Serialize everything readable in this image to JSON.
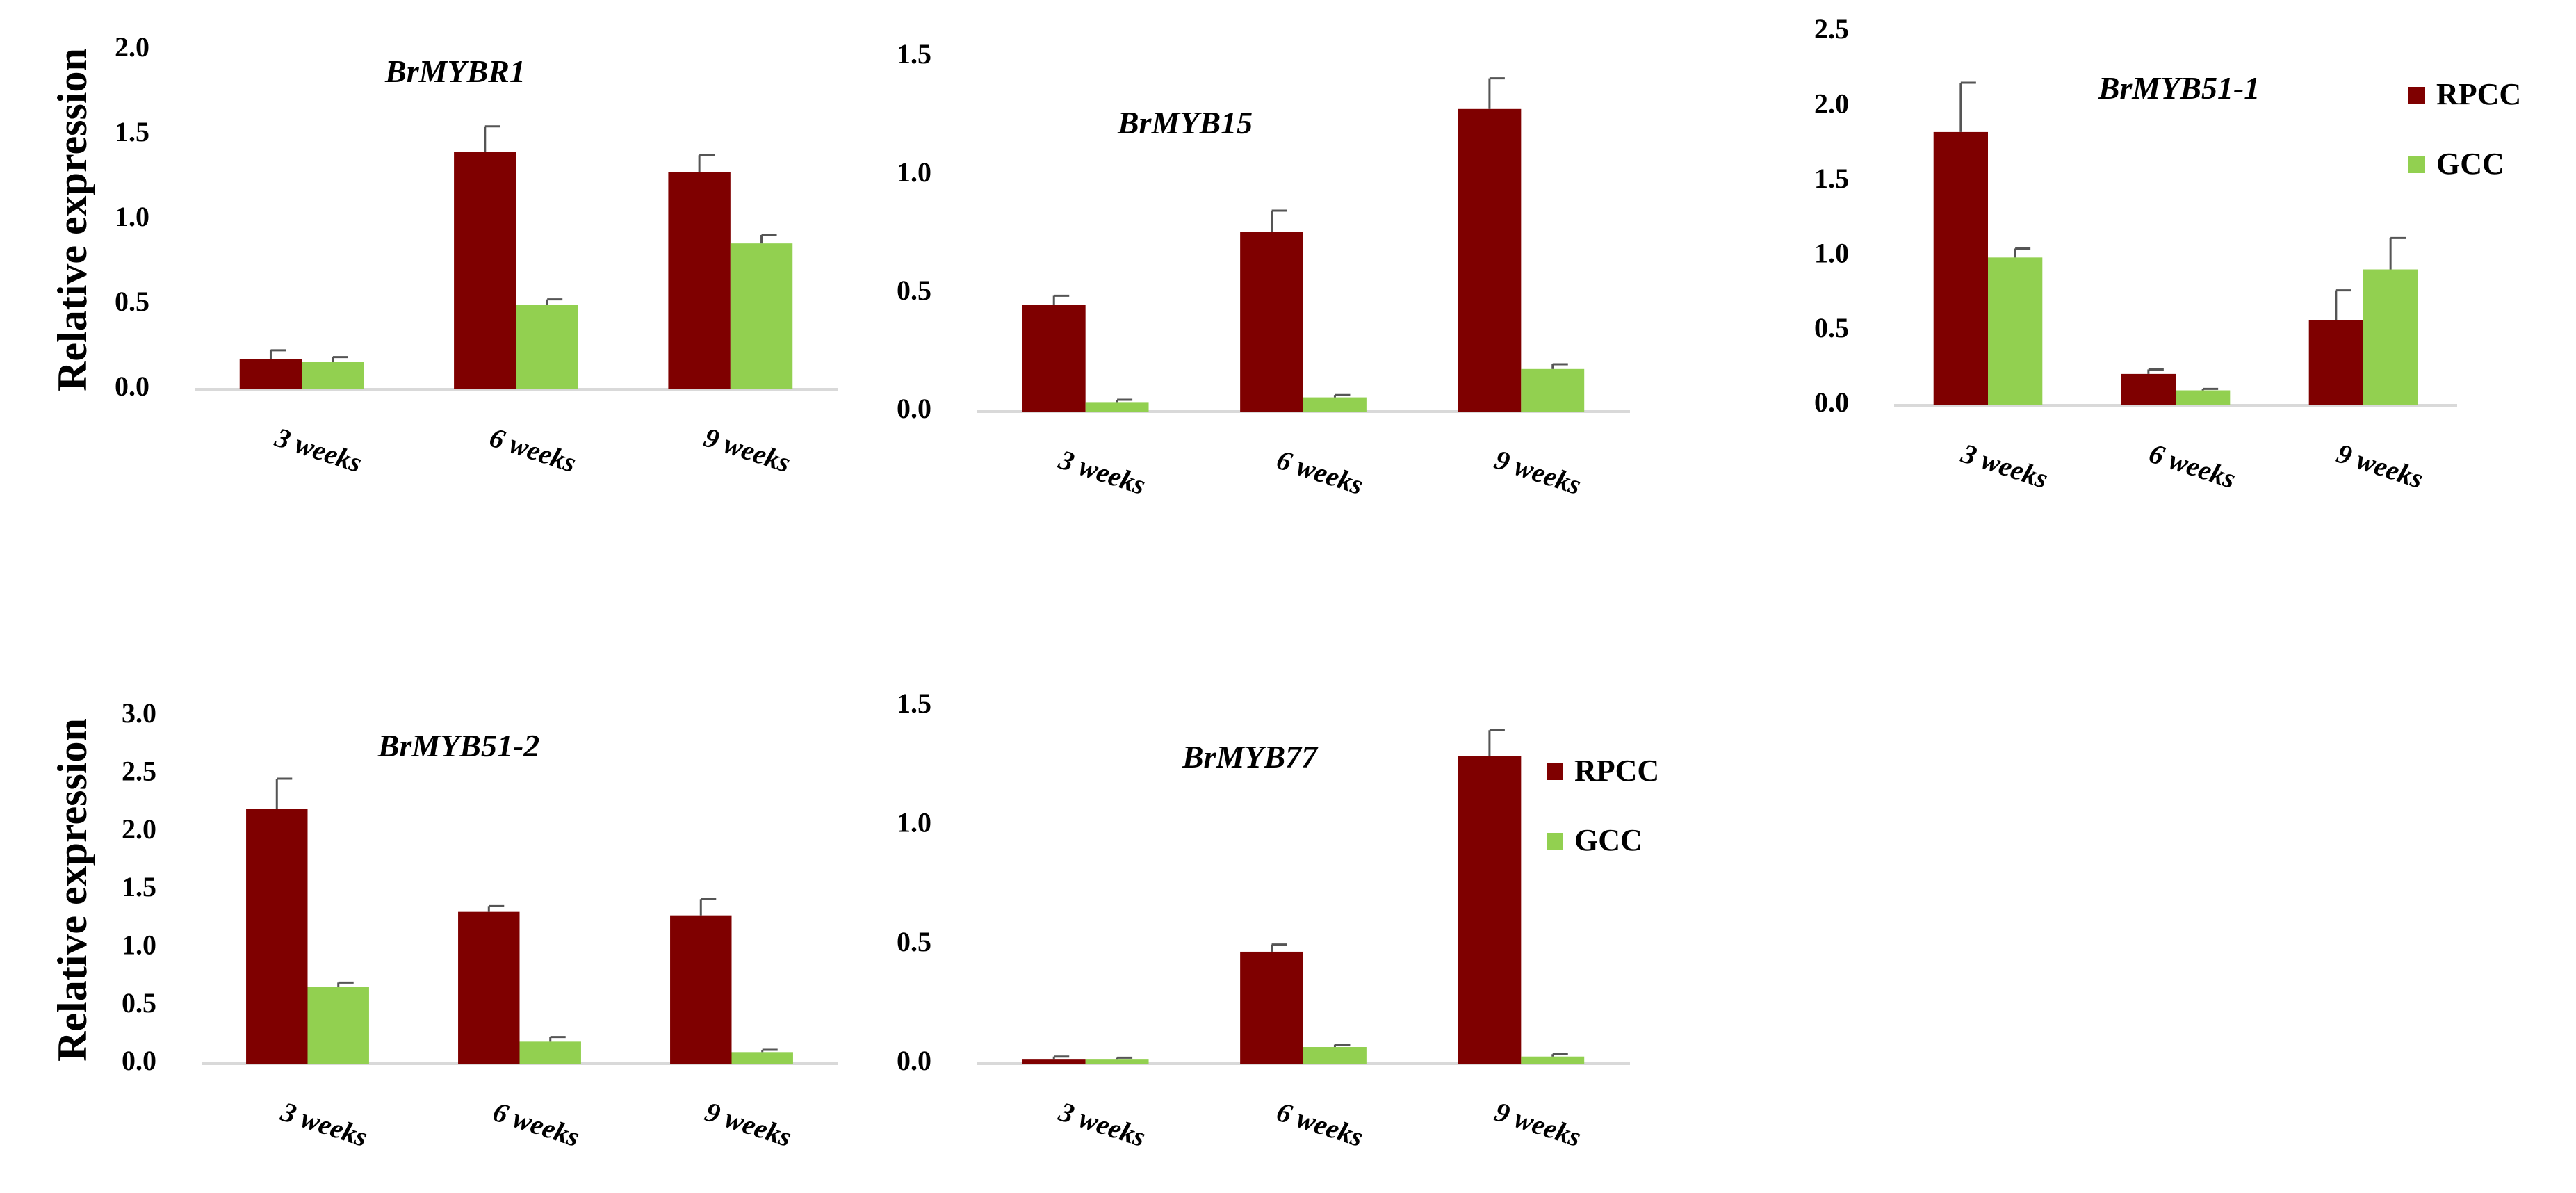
{
  "colors": {
    "RPCC": "#7f0000",
    "GCC": "#92d050",
    "axis": "#d9d9d9",
    "error": "#555555"
  },
  "chart_data": [
    {
      "type": "bar",
      "title": "BrMYBR1",
      "ylabel": "Relative expression",
      "categories": [
        "3 weeks",
        "6 weeks",
        "9 weeks"
      ],
      "ylim": [
        0,
        2.0
      ],
      "yticks": [
        "0.0",
        "0.5",
        "1.0",
        "1.5",
        "2.0"
      ],
      "legend": "none",
      "series": [
        {
          "name": "RPCC",
          "values": [
            0.18,
            1.4,
            1.28
          ],
          "errors": [
            0.05,
            0.15,
            0.1
          ]
        },
        {
          "name": "GCC",
          "values": [
            0.16,
            0.5,
            0.86
          ],
          "errors": [
            0.03,
            0.03,
            0.05
          ]
        }
      ]
    },
    {
      "type": "bar",
      "title": "BrMYB15",
      "ylabel": "",
      "categories": [
        "3 weeks",
        "6 weeks",
        "9 weeks"
      ],
      "ylim": [
        0,
        1.5
      ],
      "yticks": [
        "0.0",
        "0.5",
        "1.0",
        "1.5"
      ],
      "legend": "none",
      "series": [
        {
          "name": "RPCC",
          "values": [
            0.45,
            0.76,
            1.28
          ],
          "errors": [
            0.04,
            0.09,
            0.13
          ]
        },
        {
          "name": "GCC",
          "values": [
            0.04,
            0.06,
            0.18
          ],
          "errors": [
            0.01,
            0.01,
            0.02
          ]
        }
      ]
    },
    {
      "type": "bar",
      "title": "BrMYB51-1",
      "ylabel": "",
      "categories": [
        "3 weeks",
        "6 weeks",
        "9 weeks"
      ],
      "ylim": [
        0,
        2.5
      ],
      "yticks": [
        "0.0",
        "0.5",
        "1.0",
        "1.5",
        "2.0",
        "2.5"
      ],
      "legend": "top-right",
      "series": [
        {
          "name": "RPCC",
          "values": [
            1.83,
            0.21,
            0.57
          ],
          "errors": [
            0.33,
            0.03,
            0.2
          ]
        },
        {
          "name": "GCC",
          "values": [
            0.99,
            0.1,
            0.91
          ],
          "errors": [
            0.06,
            0.01,
            0.21
          ]
        }
      ]
    },
    {
      "type": "bar",
      "title": "BrMYB51-2",
      "ylabel": "Relative expression",
      "categories": [
        "3 weeks",
        "6 weeks",
        "9 weeks"
      ],
      "ylim": [
        0,
        3.0
      ],
      "yticks": [
        "0.0",
        "0.5",
        "1.0",
        "1.5",
        "2.0",
        "2.5",
        "3.0"
      ],
      "legend": "none",
      "series": [
        {
          "name": "RPCC",
          "values": [
            2.2,
            1.31,
            1.28
          ],
          "errors": [
            0.26,
            0.05,
            0.14
          ]
        },
        {
          "name": "GCC",
          "values": [
            0.66,
            0.19,
            0.1
          ],
          "errors": [
            0.04,
            0.04,
            0.02
          ]
        }
      ]
    },
    {
      "type": "bar",
      "title": "BrMYB77",
      "ylabel": "",
      "categories": [
        "3 weeks",
        "6 weeks",
        "9 weeks"
      ],
      "ylim": [
        0,
        1.5
      ],
      "yticks": [
        "0.0",
        "0.5",
        "1.0",
        "1.5"
      ],
      "legend": "right",
      "series": [
        {
          "name": "RPCC",
          "values": [
            0.02,
            0.47,
            1.29
          ],
          "errors": [
            0.01,
            0.03,
            0.11
          ]
        },
        {
          "name": "GCC",
          "values": [
            0.02,
            0.07,
            0.03
          ],
          "errors": [
            0.005,
            0.01,
            0.01
          ]
        }
      ]
    }
  ]
}
